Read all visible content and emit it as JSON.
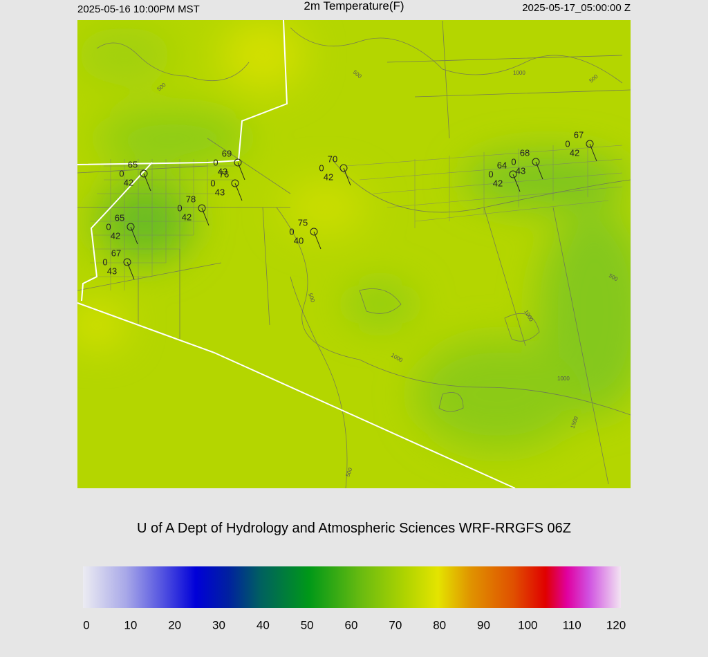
{
  "header": {
    "left": "2025-05-16 10:00PM MST",
    "title": "2m Temperature(F)",
    "right": "2025-05-17_05:00:00 Z"
  },
  "map": {
    "contour_labels": [
      "500",
      "500",
      "1000",
      "500",
      "500",
      "500",
      "1000",
      "1000",
      "1000",
      "1500",
      "500"
    ],
    "stations": [
      {
        "temperature": 65,
        "wind": 0,
        "dewpoint": 42
      },
      {
        "temperature": 69,
        "wind": 0,
        "dewpoint": 43
      },
      {
        "temperature": 70,
        "wind": 0,
        "dewpoint": 42
      },
      {
        "temperature": 76,
        "wind": 0,
        "dewpoint": 43
      },
      {
        "temperature": 78,
        "wind": 0,
        "dewpoint": 42
      },
      {
        "temperature": 65,
        "wind": 0,
        "dewpoint": 42
      },
      {
        "temperature": 67,
        "wind": 0,
        "dewpoint": 43
      },
      {
        "temperature": 75,
        "wind": 0,
        "dewpoint": 40
      },
      {
        "temperature": 64,
        "wind": 0,
        "dewpoint": 42
      },
      {
        "temperature": 68,
        "wind": 0,
        "dewpoint": 43
      },
      {
        "temperature": 67,
        "wind": 0,
        "dewpoint": 42
      }
    ]
  },
  "footer": "U of A Dept of Hydrology and Atmospheric Sciences WRF-RRGFS 06Z",
  "colorbar": {
    "ticks": [
      0,
      10,
      20,
      30,
      40,
      50,
      60,
      70,
      80,
      90,
      100,
      110,
      120
    ]
  }
}
